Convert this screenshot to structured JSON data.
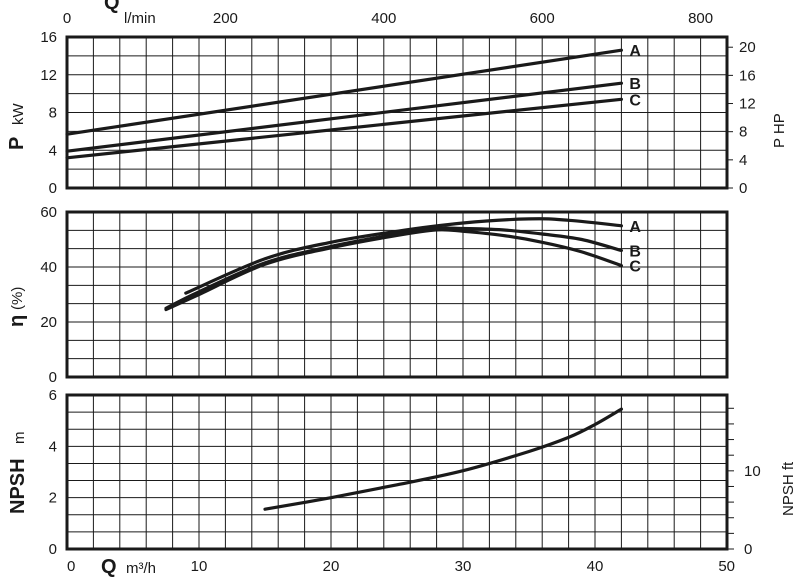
{
  "chart_data": [
    {
      "type": "line",
      "title": "",
      "xlabel": "Q",
      "xunit": "l/min",
      "x2label": "Q",
      "x2unit": "m³/h",
      "ylabel": "P",
      "yunit": "kW",
      "y2label": "P HP",
      "xlim": [
        0,
        50
      ],
      "ylim": [
        0,
        16
      ],
      "y2lim": [
        0,
        21.45
      ],
      "top_xticks_lpm": [
        "0",
        "200",
        "400",
        "600",
        "800"
      ],
      "yticks": [
        "0",
        "4",
        "8",
        "12",
        "16"
      ],
      "y2ticks": [
        "0",
        "4",
        "8",
        "12",
        "16",
        "20"
      ],
      "grid": true,
      "series": [
        {
          "name": "A",
          "x": [
            0,
            42
          ],
          "y": [
            5.7,
            14.6
          ]
        },
        {
          "name": "B",
          "x": [
            0,
            42
          ],
          "y": [
            3.9,
            11.1
          ]
        },
        {
          "name": "C",
          "x": [
            0,
            42
          ],
          "y": [
            3.2,
            9.4
          ]
        }
      ]
    },
    {
      "type": "line",
      "title": "",
      "ylabel": "η",
      "yunit": "(%)",
      "xlim": [
        0,
        50
      ],
      "ylim": [
        0,
        60
      ],
      "yticks": [
        "0",
        "20",
        "40",
        "60"
      ],
      "grid": true,
      "series": [
        {
          "name": "A",
          "x": [
            9,
            15,
            20,
            25,
            30,
            35,
            38,
            42
          ],
          "y": [
            30.5,
            43,
            49,
            53,
            56,
            57.5,
            57,
            55
          ]
        },
        {
          "name": "B",
          "x": [
            7.5,
            10,
            15,
            20,
            25,
            28,
            30,
            33,
            36,
            39,
            42
          ],
          "y": [
            25,
            31,
            41.5,
            47.5,
            52,
            54,
            54,
            53.5,
            52,
            50,
            46
          ]
        },
        {
          "name": "C",
          "x": [
            7.5,
            10,
            15,
            20,
            25,
            28,
            30,
            33,
            36,
            39,
            42
          ],
          "y": [
            24.5,
            30,
            41,
            47,
            51.5,
            53.5,
            53,
            51.5,
            49,
            45.5,
            40.5
          ]
        }
      ]
    },
    {
      "type": "line",
      "title": "",
      "ylabel": "NPSH",
      "yunit": "m",
      "y2label": "NPSH ft",
      "xlabel": "Q",
      "xunit": "m³/h",
      "xlim": [
        0,
        50
      ],
      "ylim": [
        0,
        6
      ],
      "y2lim": [
        0,
        19.7
      ],
      "xticks": [
        "0",
        "10",
        "20",
        "30",
        "40",
        "50"
      ],
      "yticks": [
        "0",
        "2",
        "4",
        "6"
      ],
      "y2ticks": [
        "0",
        "10"
      ],
      "grid": true,
      "series": [
        {
          "name": "NPSH",
          "x": [
            15,
            20,
            25,
            30,
            35,
            38,
            40,
            42
          ],
          "y": [
            1.55,
            2.0,
            2.5,
            3.05,
            3.8,
            4.35,
            4.85,
            5.45
          ]
        }
      ]
    }
  ]
}
